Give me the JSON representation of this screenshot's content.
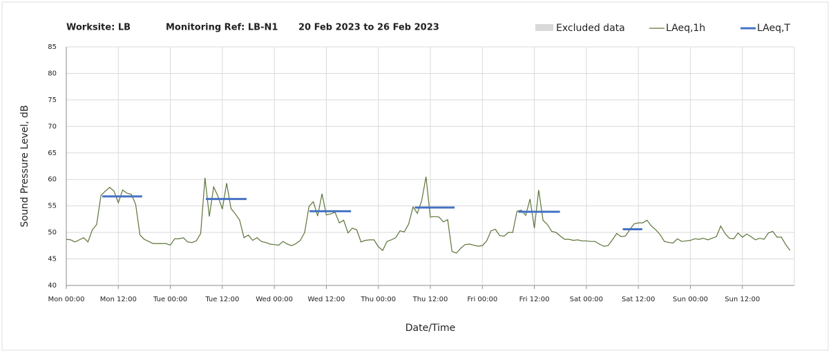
{
  "chart_data": {
    "type": "line",
    "title_parts": [
      "Worksite: LB",
      "Monitoring Ref: LB-N1",
      "20 Feb 2023 to 26 Feb 2023"
    ],
    "ylabel": "Sound Pressure Level, dB",
    "xlabel": "Date/Time",
    "excluded_label": "Excluded data",
    "excluded_color": "#d9d9d9",
    "xlim": [
      0,
      168
    ],
    "xticks": [
      {
        "value": 0,
        "label": "Mon 00:00"
      },
      {
        "value": 12,
        "label": "Mon 12:00"
      },
      {
        "value": 24,
        "label": "Tue 00:00"
      },
      {
        "value": 36,
        "label": "Tue 12:00"
      },
      {
        "value": 48,
        "label": "Wed 00:00"
      },
      {
        "value": 60,
        "label": "Wed 12:00"
      },
      {
        "value": 72,
        "label": "Thu 00:00"
      },
      {
        "value": 84,
        "label": "Thu 12:00"
      },
      {
        "value": 96,
        "label": "Fri 00:00"
      },
      {
        "value": 108,
        "label": "Fri 12:00"
      },
      {
        "value": 120,
        "label": "Sat 00:00"
      },
      {
        "value": 132,
        "label": "Sat 12:00"
      },
      {
        "value": 144,
        "label": "Sun 00:00"
      },
      {
        "value": 156,
        "label": "Sun 12:00"
      }
    ],
    "ylim": [
      40,
      85
    ],
    "yticks": [
      40,
      45,
      50,
      55,
      60,
      65,
      70,
      75,
      80,
      85
    ],
    "grid": true,
    "x": [
      0,
      1,
      2,
      3,
      4,
      5,
      6,
      7,
      8,
      9,
      10,
      11,
      12,
      13,
      14,
      15,
      16,
      17,
      18,
      19,
      20,
      21,
      22,
      23,
      24,
      25,
      26,
      27,
      28,
      29,
      30,
      31,
      32,
      33,
      34,
      35,
      36,
      37,
      38,
      39,
      40,
      41,
      42,
      43,
      44,
      45,
      46,
      47,
      48,
      49,
      50,
      51,
      52,
      53,
      54,
      55,
      56,
      57,
      58,
      59,
      60,
      61,
      62,
      63,
      64,
      65,
      66,
      67,
      68,
      69,
      70,
      71,
      72,
      73,
      74,
      75,
      76,
      77,
      78,
      79,
      80,
      81,
      82,
      83,
      84,
      85,
      86,
      87,
      88,
      89,
      90,
      91,
      92,
      93,
      94,
      95,
      96,
      97,
      98,
      99,
      100,
      101,
      102,
      103,
      104,
      105,
      106,
      107,
      108,
      109,
      110,
      111,
      112,
      113,
      114,
      115,
      116,
      117,
      118,
      119,
      120,
      121,
      122,
      123,
      124,
      125,
      126,
      127,
      128,
      129,
      130,
      131,
      132,
      133,
      134,
      135,
      136,
      137,
      138,
      139,
      140,
      141,
      142,
      143,
      144,
      145,
      146,
      147,
      148,
      149,
      150,
      151,
      152,
      153,
      154,
      155,
      156,
      157,
      158,
      159,
      160,
      161,
      162,
      163,
      164,
      165,
      166,
      167
    ],
    "series": [
      {
        "name": "LAeq,1h",
        "color": "#5b7337",
        "values": [
          48.7,
          48.6,
          48.2,
          48.6,
          49,
          48.2,
          50.5,
          51.5,
          57,
          57.8,
          58.5,
          57.8,
          55.6,
          58,
          57.4,
          57.2,
          55.3,
          49.5,
          48.7,
          48.3,
          47.9,
          47.9,
          47.9,
          47.9,
          47.6,
          48.8,
          48.8,
          49,
          48.2,
          48.1,
          48.4,
          49.8,
          60.3,
          53,
          58.6,
          56.8,
          54.4,
          59.3,
          54.5,
          53.5,
          52.3,
          49,
          49.5,
          48.5,
          49,
          48.3,
          48.1,
          47.8,
          47.7,
          47.6,
          48.3,
          47.8,
          47.5,
          47.9,
          48.5,
          50,
          54.9,
          55.8,
          53.1,
          57.3,
          53.3,
          53.5,
          53.8,
          51.8,
          52.3,
          49.9,
          50.8,
          50.5,
          48.2,
          48.5,
          48.6,
          48.6,
          47.3,
          46.6,
          48.3,
          48.6,
          49,
          50.3,
          50.1,
          51.6,
          54.8,
          53.6,
          56,
          60.5,
          52.9,
          53,
          52.9,
          52,
          52.4,
          46.4,
          46.1,
          47,
          47.7,
          47.8,
          47.6,
          47.4,
          47.5,
          48.4,
          50.3,
          50.6,
          49.4,
          49.3,
          50,
          50,
          54,
          54.2,
          53.2,
          56.3,
          50.8,
          58,
          52.3,
          51.5,
          50.2,
          50,
          49.3,
          48.7,
          48.7,
          48.5,
          48.6,
          48.4,
          48.4,
          48.3,
          48.3,
          47.8,
          47.4,
          47.5,
          48.6,
          49.8,
          49.2,
          49.3,
          50.5,
          51.6,
          51.8,
          51.8,
          52.3,
          51.2,
          50.5,
          49.6,
          48.3,
          48.1,
          48,
          48.8,
          48.3,
          48.4,
          48.5,
          48.8,
          48.7,
          48.9,
          48.6,
          48.9,
          49.2,
          51.2,
          49.8,
          48.9,
          48.8,
          49.9,
          49.1,
          49.7,
          49.2,
          48.6,
          48.9,
          48.7,
          49.9,
          50.2,
          49.1,
          49.1,
          47.7,
          46.6
        ]
      },
      {
        "name": "LAeq,T",
        "color": "#4472c4",
        "segments": [
          {
            "x": [
              8.3,
              17.5
            ],
            "value": 56.8
          },
          {
            "x": [
              32.2,
              41.6
            ],
            "value": 56.3
          },
          {
            "x": [
              56.1,
              65.7
            ],
            "value": 54
          },
          {
            "x": [
              80.4,
              89.6
            ],
            "value": 54.7
          },
          {
            "x": [
              104.3,
              113.9
            ],
            "value": 53.9
          },
          {
            "x": [
              128.4,
              132.9
            ],
            "value": 50.6
          }
        ]
      }
    ]
  }
}
